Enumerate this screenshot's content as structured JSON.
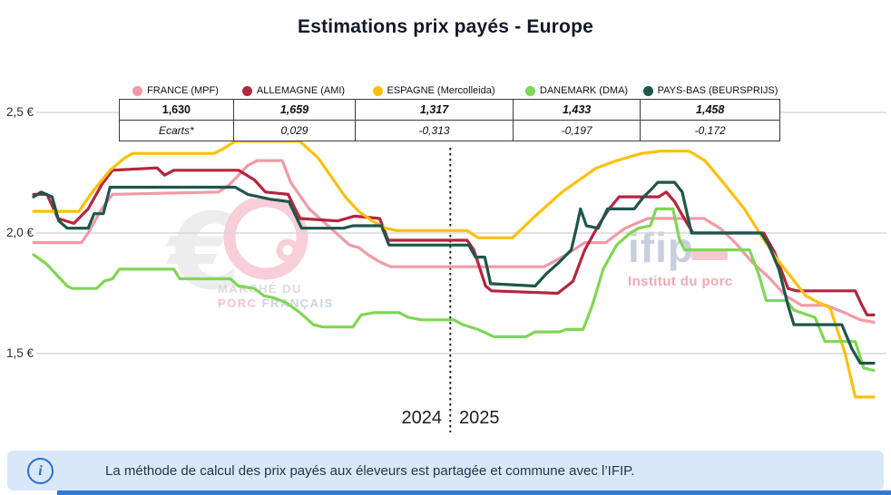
{
  "title": "Estimations prix payés - Europe",
  "legend": [
    {
      "label": "FRANCE (MPF)",
      "color": "#f09aa6"
    },
    {
      "label": "ALLEMAGNE (AMI)",
      "color": "#b4263e"
    },
    {
      "label": "ESPAGNE (Mercolleida)",
      "color": "#fcc00d"
    },
    {
      "label": "DANEMARK (DMA)",
      "color": "#80d655"
    },
    {
      "label": "PAYS-BAS (BEURSPRIJS)",
      "color": "#1d564b"
    }
  ],
  "table": {
    "values": [
      "1,630",
      "1,659",
      "1,317",
      "1,433",
      "1,458"
    ],
    "ecarts_label": "Ecarts*",
    "ecarts": [
      "0,029",
      "-0,313",
      "-0,197",
      "-0,172"
    ]
  },
  "axis": {
    "y_ticks": [
      "2,5 €",
      "2,0 €",
      "1,5 €"
    ],
    "x_labels": [
      "2024",
      "2025"
    ]
  },
  "watermarks": {
    "mpf": {
      "euro": "€",
      "line1": "MARCHÉ DU",
      "line2_pink": "PORC",
      "line2_gray": " FRANÇAIS"
    },
    "ifip": {
      "name": "ifip",
      "subtitle": "Institut du porc"
    }
  },
  "info_bar": {
    "text": "La méthode de calcul des prix payés aux éleveurs est partagée et commune avec l’IFIP."
  },
  "colors": {
    "info_accent": "#2c6bd7",
    "info_background": "#d9e8f9",
    "bottom_bar": "#3178d2",
    "gridline": "#d9d9d9",
    "divider": "#222222"
  },
  "chart_data": {
    "type": "line",
    "title": "Estimations prix payés - Europe",
    "unit": "EUR per kg (prices paid to farmers)",
    "x_axis": {
      "labels": [
        "2024",
        "2025"
      ],
      "divider_x": 0.496,
      "note": "x = fraction of time axis from start of 2024 to late 2025"
    },
    "y_axis": {
      "ticks": [
        2.5,
        2.0,
        1.5
      ],
      "tick_labels": [
        "2,5 €",
        "2,0 €",
        "1,5 €"
      ],
      "ylim": [
        1.25,
        2.55
      ]
    },
    "grid": true,
    "legend_position": "top",
    "latest_values": {
      "FRANCE (MPF)": 1.63,
      "ALLEMAGNE (AMI)": 1.659,
      "ESPAGNE (Mercolleida)": 1.317,
      "DANEMARK (DMA)": 1.433,
      "PAYS-BAS (BEURSPRIJS)": 1.458
    },
    "ecarts_vs_france": {
      "ALLEMAGNE (AMI)": 0.029,
      "ESPAGNE (Mercolleida)": -0.313,
      "DANEMARK (DMA)": -0.197,
      "PAYS-BAS (BEURSPRIJS)": -0.172
    },
    "series": [
      {
        "name": "FRANCE (MPF)",
        "color": "#f09aa6",
        "points": [
          [
            0,
            1.96
          ],
          [
            0.057,
            1.96
          ],
          [
            0.065,
            2.0
          ],
          [
            0.081,
            2.1
          ],
          [
            0.094,
            2.16
          ],
          [
            0.22,
            2.17
          ],
          [
            0.233,
            2.2
          ],
          [
            0.255,
            2.28
          ],
          [
            0.266,
            2.3
          ],
          [
            0.296,
            2.3
          ],
          [
            0.306,
            2.21
          ],
          [
            0.328,
            2.1
          ],
          [
            0.344,
            2.05
          ],
          [
            0.36,
            2.0
          ],
          [
            0.376,
            1.95
          ],
          [
            0.387,
            1.94
          ],
          [
            0.398,
            1.91
          ],
          [
            0.412,
            1.88
          ],
          [
            0.425,
            1.86
          ],
          [
            0.608,
            1.86
          ],
          [
            0.634,
            1.91
          ],
          [
            0.656,
            1.96
          ],
          [
            0.681,
            1.96
          ],
          [
            0.704,
            2.02
          ],
          [
            0.731,
            2.06
          ],
          [
            0.798,
            2.06
          ],
          [
            0.817,
            2.02
          ],
          [
            0.835,
            1.96
          ],
          [
            0.855,
            1.88
          ],
          [
            0.874,
            1.82
          ],
          [
            0.895,
            1.74
          ],
          [
            0.914,
            1.7
          ],
          [
            0.943,
            1.7
          ],
          [
            0.965,
            1.67
          ],
          [
            0.984,
            1.64
          ],
          [
            1,
            1.63
          ]
        ]
      },
      {
        "name": "ALLEMAGNE (AMI)",
        "color": "#b4263e",
        "points": [
          [
            0,
            2.16
          ],
          [
            0.016,
            2.16
          ],
          [
            0.029,
            2.06
          ],
          [
            0.048,
            2.04
          ],
          [
            0.065,
            2.1
          ],
          [
            0.081,
            2.2
          ],
          [
            0.094,
            2.26
          ],
          [
            0.147,
            2.27
          ],
          [
            0.156,
            2.24
          ],
          [
            0.167,
            2.26
          ],
          [
            0.244,
            2.26
          ],
          [
            0.263,
            2.22
          ],
          [
            0.276,
            2.17
          ],
          [
            0.303,
            2.16
          ],
          [
            0.317,
            2.06
          ],
          [
            0.362,
            2.05
          ],
          [
            0.382,
            2.07
          ],
          [
            0.412,
            2.06
          ],
          [
            0.422,
            1.97
          ],
          [
            0.516,
            1.97
          ],
          [
            0.524,
            1.93
          ],
          [
            0.538,
            1.78
          ],
          [
            0.545,
            1.76
          ],
          [
            0.624,
            1.75
          ],
          [
            0.642,
            1.8
          ],
          [
            0.656,
            1.93
          ],
          [
            0.672,
            2.03
          ],
          [
            0.685,
            2.1
          ],
          [
            0.697,
            2.15
          ],
          [
            0.744,
            2.15
          ],
          [
            0.753,
            2.17
          ],
          [
            0.763,
            2.13
          ],
          [
            0.776,
            2.05
          ],
          [
            0.785,
            2.0
          ],
          [
            0.869,
            2.0
          ],
          [
            0.882,
            1.92
          ],
          [
            0.898,
            1.77
          ],
          [
            0.908,
            1.76
          ],
          [
            0.978,
            1.76
          ],
          [
            0.986,
            1.7
          ],
          [
            0.992,
            1.66
          ],
          [
            1,
            1.66
          ]
        ]
      },
      {
        "name": "ESPAGNE (Mercolleida)",
        "color": "#fcc00d",
        "points": [
          [
            0,
            2.09
          ],
          [
            0.054,
            2.09
          ],
          [
            0.07,
            2.17
          ],
          [
            0.091,
            2.26
          ],
          [
            0.108,
            2.31
          ],
          [
            0.118,
            2.33
          ],
          [
            0.215,
            2.33
          ],
          [
            0.226,
            2.35
          ],
          [
            0.24,
            2.38
          ],
          [
            0.317,
            2.38
          ],
          [
            0.339,
            2.31
          ],
          [
            0.355,
            2.23
          ],
          [
            0.371,
            2.15
          ],
          [
            0.387,
            2.09
          ],
          [
            0.403,
            2.05
          ],
          [
            0.419,
            2.02
          ],
          [
            0.432,
            2.01
          ],
          [
            0.516,
            2.01
          ],
          [
            0.529,
            1.98
          ],
          [
            0.57,
            1.98
          ],
          [
            0.597,
            2.07
          ],
          [
            0.629,
            2.17
          ],
          [
            0.67,
            2.27
          ],
          [
            0.694,
            2.3
          ],
          [
            0.724,
            2.33
          ],
          [
            0.747,
            2.34
          ],
          [
            0.78,
            2.34
          ],
          [
            0.799,
            2.3
          ],
          [
            0.823,
            2.2
          ],
          [
            0.846,
            2.1
          ],
          [
            0.866,
            1.99
          ],
          [
            0.883,
            1.9
          ],
          [
            0.901,
            1.82
          ],
          [
            0.919,
            1.74
          ],
          [
            0.935,
            1.71
          ],
          [
            0.948,
            1.69
          ],
          [
            0.966,
            1.5
          ],
          [
            0.978,
            1.32
          ],
          [
            1,
            1.32
          ]
        ]
      },
      {
        "name": "DANEMARK (DMA)",
        "color": "#80d655",
        "points": [
          [
            0,
            1.91
          ],
          [
            0.016,
            1.87
          ],
          [
            0.04,
            1.78
          ],
          [
            0.046,
            1.77
          ],
          [
            0.075,
            1.77
          ],
          [
            0.084,
            1.8
          ],
          [
            0.094,
            1.81
          ],
          [
            0.102,
            1.85
          ],
          [
            0.167,
            1.85
          ],
          [
            0.174,
            1.81
          ],
          [
            0.234,
            1.81
          ],
          [
            0.244,
            1.78
          ],
          [
            0.263,
            1.77
          ],
          [
            0.274,
            1.74
          ],
          [
            0.287,
            1.73
          ],
          [
            0.301,
            1.71
          ],
          [
            0.317,
            1.67
          ],
          [
            0.333,
            1.62
          ],
          [
            0.344,
            1.61
          ],
          [
            0.38,
            1.61
          ],
          [
            0.39,
            1.66
          ],
          [
            0.405,
            1.67
          ],
          [
            0.435,
            1.67
          ],
          [
            0.446,
            1.65
          ],
          [
            0.462,
            1.64
          ],
          [
            0.5,
            1.64
          ],
          [
            0.511,
            1.62
          ],
          [
            0.529,
            1.6
          ],
          [
            0.548,
            1.57
          ],
          [
            0.586,
            1.57
          ],
          [
            0.597,
            1.59
          ],
          [
            0.626,
            1.59
          ],
          [
            0.634,
            1.6
          ],
          [
            0.654,
            1.6
          ],
          [
            0.665,
            1.7
          ],
          [
            0.678,
            1.85
          ],
          [
            0.694,
            1.95
          ],
          [
            0.71,
            2.0
          ],
          [
            0.72,
            2.02
          ],
          [
            0.734,
            2.03
          ],
          [
            0.741,
            2.1
          ],
          [
            0.761,
            2.1
          ],
          [
            0.769,
            1.97
          ],
          [
            0.775,
            1.93
          ],
          [
            0.852,
            1.93
          ],
          [
            0.863,
            1.83
          ],
          [
            0.872,
            1.72
          ],
          [
            0.896,
            1.72
          ],
          [
            0.905,
            1.68
          ],
          [
            0.93,
            1.65
          ],
          [
            0.942,
            1.55
          ],
          [
            0.978,
            1.55
          ],
          [
            0.988,
            1.44
          ],
          [
            1,
            1.43
          ]
        ]
      },
      {
        "name": "PAYS-BAS (BEURSPRIJS)",
        "color": "#1d564b",
        "points": [
          [
            0,
            2.15
          ],
          [
            0.009,
            2.17
          ],
          [
            0.022,
            2.15
          ],
          [
            0.03,
            2.05
          ],
          [
            0.04,
            2.02
          ],
          [
            0.065,
            2.02
          ],
          [
            0.072,
            2.08
          ],
          [
            0.083,
            2.08
          ],
          [
            0.091,
            2.19
          ],
          [
            0.24,
            2.19
          ],
          [
            0.255,
            2.16
          ],
          [
            0.282,
            2.14
          ],
          [
            0.304,
            2.13
          ],
          [
            0.319,
            2.02
          ],
          [
            0.369,
            2.02
          ],
          [
            0.38,
            2.03
          ],
          [
            0.414,
            2.03
          ],
          [
            0.423,
            1.95
          ],
          [
            0.518,
            1.95
          ],
          [
            0.526,
            1.9
          ],
          [
            0.537,
            1.9
          ],
          [
            0.544,
            1.79
          ],
          [
            0.597,
            1.78
          ],
          [
            0.61,
            1.83
          ],
          [
            0.626,
            1.88
          ],
          [
            0.64,
            1.93
          ],
          [
            0.646,
            2.02
          ],
          [
            0.651,
            2.1
          ],
          [
            0.658,
            2.03
          ],
          [
            0.672,
            2.02
          ],
          [
            0.683,
            2.1
          ],
          [
            0.715,
            2.1
          ],
          [
            0.726,
            2.15
          ],
          [
            0.735,
            2.18
          ],
          [
            0.743,
            2.21
          ],
          [
            0.763,
            2.21
          ],
          [
            0.772,
            2.17
          ],
          [
            0.783,
            2.0
          ],
          [
            0.866,
            2.0
          ],
          [
            0.875,
            1.95
          ],
          [
            0.887,
            1.85
          ],
          [
            0.898,
            1.7
          ],
          [
            0.905,
            1.62
          ],
          [
            0.962,
            1.62
          ],
          [
            0.974,
            1.52
          ],
          [
            0.984,
            1.46
          ],
          [
            1,
            1.46
          ]
        ]
      }
    ]
  }
}
